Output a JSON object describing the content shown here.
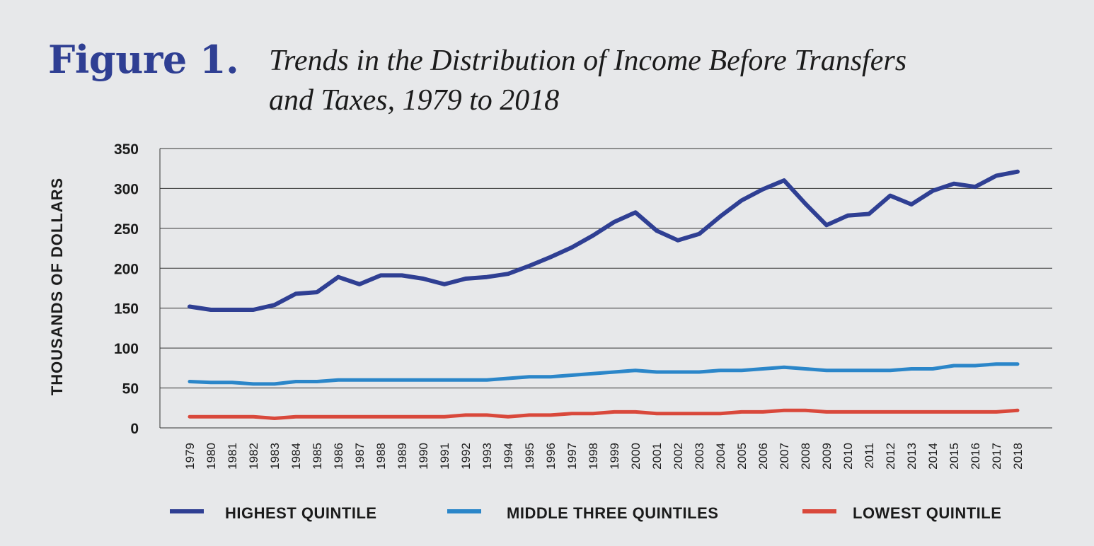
{
  "figure_label": "Figure 1.",
  "figure_title_line1": "Trends in the Distribution of Income Before Transfers",
  "figure_title_line2": "and Taxes, 1979 to 2018",
  "colors": {
    "background": "#e7e8ea",
    "gridline": "#333333",
    "highest": "#2f3f93",
    "middle": "#2b86c9",
    "lowest": "#d9483b",
    "label_blue": "#2f3f93"
  },
  "chart_data": {
    "type": "line",
    "ylabel": "THOUSANDS OF DOLLARS",
    "xlabel": "",
    "ylim": [
      0,
      350
    ],
    "yticks": [
      0,
      50,
      100,
      150,
      200,
      250,
      300,
      350
    ],
    "grid": true,
    "legend_position": "bottom",
    "x": [
      "1979",
      "1980",
      "1981",
      "1982",
      "1983",
      "1984",
      "1985",
      "1986",
      "1987",
      "1988",
      "1989",
      "1990",
      "1991",
      "1992",
      "1993",
      "1994",
      "1995",
      "1996",
      "1997",
      "1998",
      "1999",
      "2000",
      "2001",
      "2002",
      "2003",
      "2004",
      "2005",
      "2006",
      "2007",
      "2008",
      "2009",
      "2010",
      "2011",
      "2012",
      "2013",
      "2014",
      "2015",
      "2016",
      "2017",
      "2018"
    ],
    "series": [
      {
        "name": "HIGHEST QUINTILE",
        "color": "#2f3f93",
        "values": [
          152,
          148,
          148,
          148,
          154,
          168,
          170,
          189,
          180,
          191,
          191,
          187,
          180,
          187,
          189,
          193,
          203,
          214,
          226,
          241,
          258,
          270,
          247,
          235,
          243,
          265,
          285,
          299,
          310,
          281,
          254,
          266,
          268,
          291,
          280,
          297,
          306,
          302,
          316,
          321
        ]
      },
      {
        "name": "MIDDLE THREE QUINTILES",
        "color": "#2b86c9",
        "values": [
          58,
          57,
          57,
          55,
          55,
          58,
          58,
          60,
          60,
          60,
          60,
          60,
          60,
          60,
          60,
          62,
          64,
          64,
          66,
          68,
          70,
          72,
          70,
          70,
          70,
          72,
          72,
          74,
          76,
          74,
          72,
          72,
          72,
          72,
          74,
          74,
          78,
          78,
          80,
          80
        ]
      },
      {
        "name": "LOWEST QUINTILE",
        "color": "#d9483b",
        "values": [
          14,
          14,
          14,
          14,
          12,
          14,
          14,
          14,
          14,
          14,
          14,
          14,
          14,
          16,
          16,
          14,
          16,
          16,
          18,
          18,
          20,
          20,
          18,
          18,
          18,
          18,
          20,
          20,
          22,
          22,
          20,
          20,
          20,
          20,
          20,
          20,
          20,
          20,
          20,
          22
        ]
      }
    ]
  }
}
